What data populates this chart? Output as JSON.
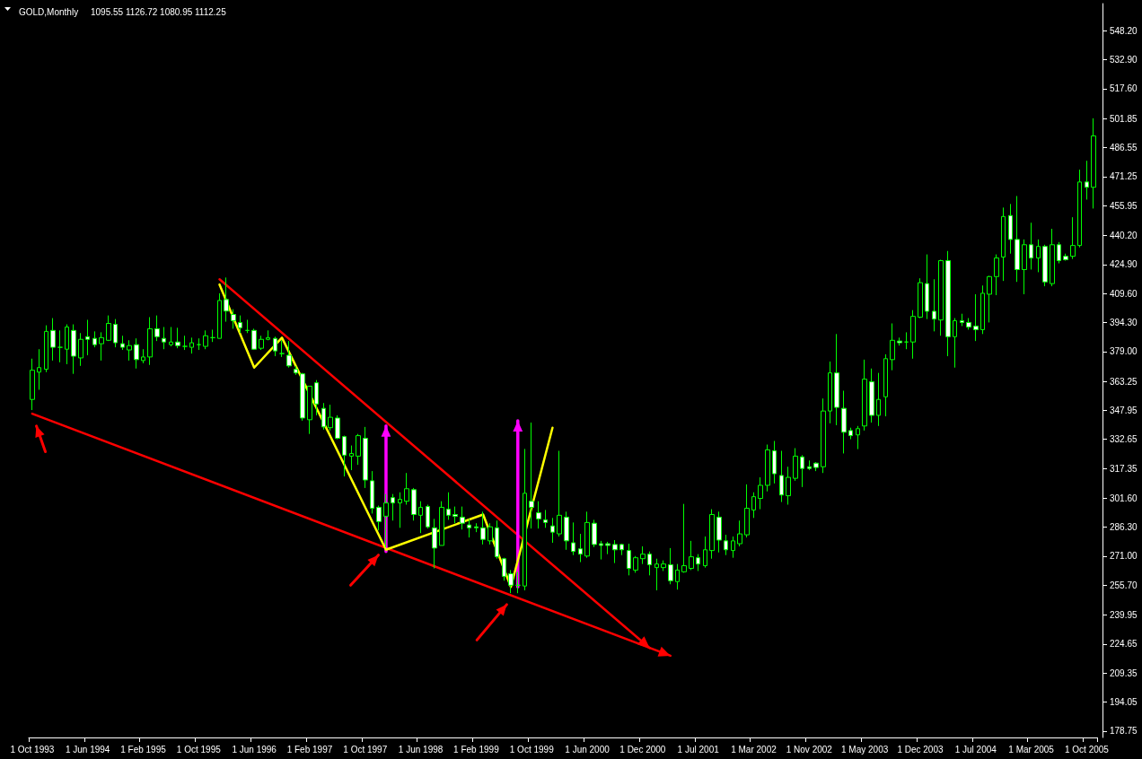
{
  "chart_data": {
    "type": "candlestick",
    "title": "GOLD,Monthly",
    "annotations": [
      "1095.55 1126.72 1080.95 1112.25"
    ],
    "categories": [
      "1 Oct 1993",
      null,
      null,
      null,
      null,
      null,
      null,
      null,
      "1 Jun 1994",
      null,
      null,
      null,
      null,
      null,
      null,
      null,
      "1 Feb 1995",
      null,
      null,
      null,
      null,
      null,
      null,
      null,
      "1 Oct 1995",
      null,
      null,
      null,
      null,
      null,
      null,
      null,
      "1 Jun 1996",
      null,
      null,
      null,
      null,
      null,
      null,
      null,
      "1 Feb 1997",
      null,
      null,
      null,
      null,
      null,
      null,
      null,
      "1 Oct 1997",
      null,
      null,
      null,
      null,
      null,
      null,
      null,
      "1 Jun 1998",
      null,
      null,
      null,
      null,
      null,
      null,
      null,
      "1 Feb 1999",
      null,
      null,
      null,
      null,
      null,
      null,
      null,
      "1 Oct 1999",
      null,
      null,
      null,
      null,
      null,
      null,
      null,
      "1 Jun 2000",
      null,
      null,
      null,
      null,
      null,
      null,
      null,
      "1 Dec 2000",
      null,
      null,
      null,
      null,
      null,
      null,
      null,
      "1 Jul 2001",
      null,
      null,
      null,
      null,
      null,
      null,
      null,
      "1 Mar 2002",
      null,
      null,
      null,
      null,
      null,
      null,
      null,
      "1 Nov 2002",
      null,
      null,
      null,
      null,
      null,
      null,
      null,
      "1 May 2003",
      null,
      null,
      null,
      null,
      null,
      null,
      null,
      "1 Dec 2003",
      null,
      null,
      null,
      null,
      null,
      null,
      null,
      "1 Jul 2004",
      null,
      null,
      null,
      null,
      null,
      null,
      null,
      "1 Mar 2005",
      null,
      null,
      null,
      null,
      null,
      null,
      null,
      "1 Oct 2005",
      null
    ],
    "ylim": [
      175.4,
      562.5
    ],
    "yticks": [
      {
        "value": 548.2,
        "label": "548.20"
      },
      {
        "value": 532.9,
        "label": "532.90"
      },
      {
        "value": 517.6,
        "label": "517.60"
      },
      {
        "value": 501.85,
        "label": "501.85"
      },
      {
        "value": 486.55,
        "label": "486.55"
      },
      {
        "value": 471.25,
        "label": "471.25"
      },
      {
        "value": 455.95,
        "label": "455.95"
      },
      {
        "value": 440.2,
        "label": "440.20"
      },
      {
        "value": 424.9,
        "label": "424.90"
      },
      {
        "value": 409.6,
        "label": "409.60"
      },
      {
        "value": 394.3,
        "label": "394.30"
      },
      {
        "value": 379,
        "label": "379.00"
      },
      {
        "value": 363.25,
        "label": "363.25"
      },
      {
        "value": 347.95,
        "label": "347.95"
      },
      {
        "value": 332.65,
        "label": "332.65"
      },
      {
        "value": 317.35,
        "label": "317.35"
      },
      {
        "value": 301.6,
        "label": "301.60"
      },
      {
        "value": 286.3,
        "label": "286.30"
      },
      {
        "value": 271,
        "label": "271.00"
      },
      {
        "value": 255.7,
        "label": "255.70"
      },
      {
        "value": 239.95,
        "label": "239.95"
      },
      {
        "value": 224.65,
        "label": "224.65"
      },
      {
        "value": 209.35,
        "label": "209.35"
      },
      {
        "value": 194.05,
        "label": "194.05"
      },
      {
        "value": 178.75,
        "label": "178.75"
      }
    ],
    "grid": false,
    "color": "#00ff00",
    "series": [
      {
        "type": "line",
        "color": "#ffff00",
        "values": [
          null,
          null,
          null,
          null,
          null,
          null,
          null,
          null,
          null,
          null,
          null,
          null,
          null,
          null,
          null,
          null,
          null,
          null,
          null,
          null,
          null,
          null,
          null,
          null,
          null,
          null,
          null,
          414.3,
          null,
          null,
          null,
          null,
          370.5,
          null,
          null,
          null,
          386.3,
          null,
          null,
          null,
          null,
          null,
          null,
          null,
          null,
          null,
          null,
          null,
          null,
          null,
          null,
          274.4,
          null,
          null,
          null,
          null,
          null,
          null,
          null,
          null,
          null,
          null,
          null,
          null,
          null,
          293.0,
          null,
          null,
          null,
          254.8,
          null,
          null,
          null,
          null,
          null,
          338.8,
          null,
          null,
          null,
          null,
          null,
          null,
          null,
          null,
          null,
          null,
          null,
          null,
          null,
          null,
          null,
          null,
          null,
          null,
          null,
          null,
          null,
          null,
          null,
          null,
          null,
          null,
          null,
          null,
          null,
          null,
          null,
          null,
          null,
          null,
          null,
          null,
          null,
          null,
          null,
          null,
          null,
          null,
          null,
          null,
          null,
          null,
          null,
          null,
          null,
          null,
          null,
          null,
          null,
          null,
          null,
          null,
          null,
          null,
          null,
          null,
          null,
          null,
          null,
          null,
          null,
          null,
          null,
          null,
          null,
          null,
          null,
          null,
          null,
          null,
          null,
          null,
          null,
          null
        ]
      }
    ],
    "ohlc": [
      [
        353.7,
        375.2,
        348.1,
        369.1
      ],
      [
        368.1,
        380.2,
        358.8,
        370.5
      ],
      [
        369.6,
        392.8,
        368.1,
        389.6
      ],
      [
        390.1,
        396.6,
        374.2,
        381.2
      ],
      [
        381.2,
        390.1,
        373.3,
        381.2
      ],
      [
        380.2,
        393.3,
        372.3,
        391.9
      ],
      [
        390.1,
        393.3,
        367.2,
        376.5
      ],
      [
        375.6,
        388.7,
        371.4,
        385.4
      ],
      [
        386.8,
        395.7,
        377.0,
        385.4
      ],
      [
        385.9,
        389.6,
        381.2,
        382.6
      ],
      [
        383.1,
        389.1,
        374.2,
        386.3
      ],
      [
        384.9,
        398.0,
        384.5,
        393.8
      ],
      [
        393.3,
        396.1,
        381.2,
        383.6
      ],
      [
        383.1,
        387.3,
        379.8,
        381.2
      ],
      [
        379.8,
        384.9,
        374.2,
        382.1
      ],
      [
        382.6,
        385.9,
        370.0,
        374.7
      ],
      [
        374.2,
        380.2,
        372.8,
        376.1
      ],
      [
        376.1,
        397.1,
        371.9,
        391.0
      ],
      [
        391.0,
        398.0,
        384.5,
        386.8
      ],
      [
        385.9,
        391.9,
        380.2,
        384.0
      ],
      [
        382.6,
        391.9,
        381.7,
        384.0
      ],
      [
        384.0,
        391.5,
        380.7,
        382.1
      ],
      [
        381.7,
        387.3,
        379.8,
        381.7
      ],
      [
        381.2,
        386.3,
        377.9,
        383.6
      ],
      [
        382.6,
        385.9,
        379.8,
        382.6
      ],
      [
        381.7,
        390.1,
        380.2,
        387.3
      ],
      [
        386.3,
        390.5,
        384.0,
        386.3
      ],
      [
        385.9,
        409.7,
        385.9,
        405.9
      ],
      [
        406.4,
        418.0,
        394.7,
        400.3
      ],
      [
        398.5,
        401.3,
        391.0,
        395.2
      ],
      [
        394.3,
        398.0,
        388.7,
        391.5
      ],
      [
        390.1,
        395.7,
        388.7,
        390.1
      ],
      [
        390.1,
        391.0,
        379.8,
        380.2
      ],
      [
        380.7,
        387.3,
        379.8,
        385.4
      ],
      [
        385.4,
        390.1,
        384.9,
        386.3
      ],
      [
        385.9,
        386.8,
        376.5,
        379.3
      ],
      [
        377.9,
        384.9,
        376.1,
        377.9
      ],
      [
        377.0,
        384.5,
        370.5,
        371.4
      ],
      [
        369.6,
        371.4,
        366.7,
        367.7
      ],
      [
        367.2,
        367.7,
        342.5,
        343.9
      ],
      [
        343.0,
        360.7,
        335.5,
        360.7
      ],
      [
        362.5,
        363.9,
        345.3,
        351.3
      ],
      [
        349.0,
        351.8,
        337.8,
        339.2
      ],
      [
        338.8,
        350.9,
        337.3,
        344.3
      ],
      [
        343.9,
        345.3,
        332.7,
        333.2
      ],
      [
        334.1,
        334.6,
        313.1,
        324.3
      ],
      [
        323.8,
        329.4,
        316.4,
        325.2
      ],
      [
        323.8,
        335.5,
        319.2,
        334.6
      ],
      [
        333.2,
        339.2,
        307.0,
        311.2
      ],
      [
        310.8,
        315.9,
        293.5,
        296.3
      ],
      [
        296.8,
        297.7,
        284.6,
        289.3
      ],
      [
        292.1,
        303.8,
        275.8,
        299.1
      ],
      [
        301.9,
        303.8,
        289.8,
        299.1
      ],
      [
        299.1,
        304.7,
        286.0,
        301.0
      ],
      [
        300.0,
        314.9,
        298.2,
        306.6
      ],
      [
        306.1,
        307.0,
        289.8,
        293.0
      ],
      [
        292.6,
        300.0,
        283.2,
        296.8
      ],
      [
        297.2,
        298.2,
        285.6,
        286.5
      ],
      [
        286.0,
        290.7,
        264.6,
        275.3
      ],
      [
        276.7,
        300.0,
        276.7,
        296.8
      ],
      [
        295.8,
        304.7,
        290.2,
        292.6
      ],
      [
        293.0,
        297.2,
        288.4,
        292.1
      ],
      [
        291.6,
        297.2,
        285.1,
        288.4
      ],
      [
        287.5,
        290.7,
        280.9,
        286.0
      ],
      [
        286.5,
        288.4,
        283.7,
        286.0
      ],
      [
        286.0,
        294.5,
        277.2,
        279.9
      ],
      [
        279.1,
        288.4,
        277.2,
        286.5
      ],
      [
        286.0,
        289.8,
        269.7,
        270.7
      ],
      [
        269.7,
        270.2,
        258.1,
        260.4
      ],
      [
        261.8,
        263.7,
        251.5,
        255.7
      ],
      [
        255.7,
        262.8,
        251.5,
        255.7
      ],
      [
        255.3,
        327.6,
        253.0,
        304.2
      ],
      [
        300.0,
        341.5,
        285.6,
        296.8
      ],
      [
        293.9,
        300.0,
        285.6,
        290.7
      ],
      [
        290.2,
        295.4,
        286.0,
        288.8
      ],
      [
        287.0,
        291.2,
        278.1,
        283.7
      ],
      [
        282.8,
        326.6,
        281.4,
        292.6
      ],
      [
        291.6,
        294.5,
        274.4,
        279.1
      ],
      [
        278.1,
        288.8,
        271.6,
        273.5
      ],
      [
        274.9,
        282.8,
        267.9,
        272.1
      ],
      [
        271.1,
        294.5,
        270.2,
        288.8
      ],
      [
        288.4,
        290.2,
        275.8,
        277.2
      ],
      [
        277.6,
        279.1,
        269.3,
        276.7
      ],
      [
        277.6,
        278.6,
        272.1,
        276.7
      ],
      [
        277.2,
        279.5,
        267.4,
        274.4
      ],
      [
        277.2,
        277.6,
        271.6,
        274.4
      ],
      [
        274.0,
        277.6,
        260.9,
        264.6
      ],
      [
        263.7,
        271.1,
        262.3,
        270.2
      ],
      [
        269.7,
        276.2,
        266.9,
        272.1
      ],
      [
        272.1,
        273.5,
        260.9,
        266.5
      ],
      [
        265.0,
        269.7,
        253.0,
        266.9
      ],
      [
        265.0,
        268.8,
        263.2,
        266.9
      ],
      [
        266.5,
        275.3,
        256.2,
        258.1
      ],
      [
        257.6,
        266.9,
        253.4,
        263.7
      ],
      [
        262.8,
        298.6,
        262.3,
        266.0
      ],
      [
        264.6,
        279.1,
        263.7,
        270.7
      ],
      [
        270.2,
        272.1,
        263.2,
        266.9
      ],
      [
        266.0,
        281.4,
        265.0,
        274.4
      ],
      [
        274.0,
        295.8,
        269.7,
        293.0
      ],
      [
        291.6,
        294.5,
        273.0,
        279.5
      ],
      [
        279.1,
        282.3,
        271.6,
        274.4
      ],
      [
        274.0,
        281.4,
        270.2,
        279.1
      ],
      [
        277.6,
        289.8,
        276.2,
        282.8
      ],
      [
        282.3,
        308.9,
        280.9,
        296.3
      ],
      [
        295.4,
        304.7,
        291.2,
        302.4
      ],
      [
        301.5,
        312.6,
        295.8,
        308.4
      ],
      [
        308.4,
        329.9,
        305.2,
        327.1
      ],
      [
        326.6,
        331.8,
        309.4,
        314.5
      ],
      [
        313.6,
        326.6,
        299.6,
        303.3
      ],
      [
        302.9,
        318.2,
        298.2,
        312.6
      ],
      [
        312.1,
        328.0,
        310.8,
        323.8
      ],
      [
        323.4,
        324.3,
        307.5,
        317.3
      ],
      [
        318.2,
        321.5,
        316.4,
        317.3
      ],
      [
        320.1,
        320.6,
        315.9,
        317.8
      ],
      [
        318.2,
        354.2,
        314.9,
        347.6
      ],
      [
        347.6,
        373.7,
        341.1,
        367.7
      ],
      [
        367.7,
        388.2,
        340.1,
        349.5
      ],
      [
        349.0,
        358.3,
        325.2,
        336.4
      ],
      [
        337.3,
        338.8,
        332.7,
        334.6
      ],
      [
        335.0,
        339.7,
        327.5,
        338.3
      ],
      [
        339.7,
        374.7,
        337.3,
        364.4
      ],
      [
        363.0,
        370.0,
        341.5,
        345.3
      ],
      [
        345.3,
        367.7,
        339.7,
        353.7
      ],
      [
        355.1,
        377.5,
        344.8,
        375.2
      ],
      [
        374.7,
        393.8,
        369.1,
        384.9
      ],
      [
        384.5,
        386.3,
        382.1,
        383.6
      ],
      [
        384.0,
        389.1,
        380.2,
        384.0
      ],
      [
        384.0,
        400.8,
        375.2,
        397.5
      ],
      [
        397.1,
        417.6,
        396.6,
        415.3
      ],
      [
        414.8,
        430.2,
        396.1,
        400.2
      ],
      [
        400.2,
        417.1,
        389.6,
        396.1
      ],
      [
        395.6,
        427.4,
        387.3,
        426.9
      ],
      [
        426.9,
        432.0,
        376.5,
        386.8
      ],
      [
        386.8,
        396.6,
        370.5,
        395.2
      ],
      [
        395.2,
        398.9,
        392.4,
        394.3
      ],
      [
        394.3,
        396.6,
        390.5,
        391.9
      ],
      [
        392.4,
        409.2,
        384.5,
        390.5
      ],
      [
        390.5,
        413.8,
        388.2,
        409.7
      ],
      [
        409.2,
        418.9,
        394.3,
        418.5
      ],
      [
        418.5,
        430.2,
        408.7,
        428.3
      ],
      [
        428.8,
        454.9,
        416.2,
        450.2
      ],
      [
        450.7,
        456.8,
        430.6,
        438.1
      ],
      [
        438.1,
        461.0,
        415.7,
        422.2
      ],
      [
        422.2,
        438.1,
        409.2,
        435.3
      ],
      [
        435.3,
        446.9,
        422.2,
        428.3
      ],
      [
        428.3,
        438.1,
        420.8,
        434.4
      ],
      [
        434.4,
        435.3,
        413.4,
        415.7
      ],
      [
        414.8,
        443.7,
        413.4,
        435.3
      ],
      [
        435.3,
        436.7,
        425.5,
        426.9
      ],
      [
        429.2,
        430.6,
        426.9,
        427.4
      ],
      [
        429.2,
        449.8,
        427.8,
        434.9
      ],
      [
        434.9,
        474.9,
        433.9,
        468.4
      ],
      [
        468.4,
        479.6,
        459.1,
        465.6
      ],
      [
        465.6,
        502.0,
        454.4,
        492.7
      ]
    ]
  }
}
